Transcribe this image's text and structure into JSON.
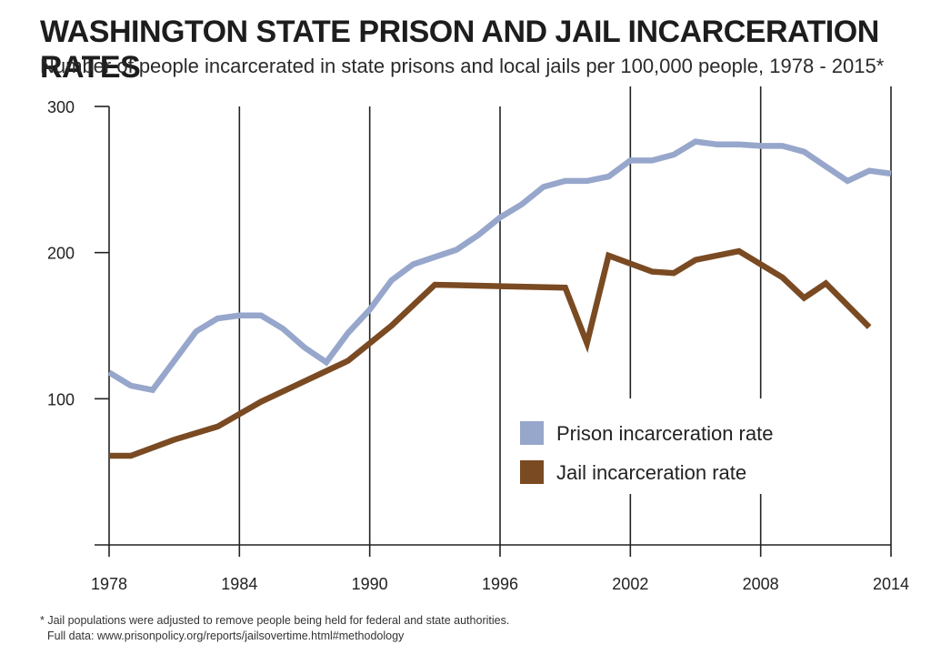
{
  "header": {
    "title": "WASHINGTON STATE PRISON AND JAIL INCARCERATION RATES",
    "subtitle": "Number of people incarcerated in state prisons and local jails per 100,000 people, 1978 - 2015*"
  },
  "footnote": {
    "line1": "* Jail populations were adjusted to remove people being held for federal and state authorities.",
    "line2": "Full data: www.prisonpolicy.org/reports/jailsovertime.html#methodology"
  },
  "chart_data": {
    "type": "line",
    "title": "WASHINGTON STATE PRISON AND JAIL INCARCERATION RATES",
    "subtitle": "Number of people incarcerated in state prisons and local jails per 100,000 people, 1978 - 2015*",
    "xlabel": "",
    "ylabel": "",
    "xlim": [
      1978,
      2014
    ],
    "ylim": [
      0,
      300
    ],
    "x_ticks": [
      1978,
      1984,
      1990,
      1996,
      2002,
      2008,
      2014
    ],
    "y_ticks": [
      100,
      200,
      300
    ],
    "legend_position": "lower-right",
    "grid": "vertical",
    "series": [
      {
        "name": "Prison incarceration rate",
        "color": "#97a6cb",
        "x": [
          1978,
          1979,
          1980,
          1981,
          1982,
          1983,
          1984,
          1985,
          1986,
          1987,
          1988,
          1989,
          1990,
          1991,
          1992,
          1993,
          1994,
          1995,
          1996,
          1997,
          1998,
          1999,
          2000,
          2001,
          2002,
          2003,
          2004,
          2005,
          2006,
          2007,
          2008,
          2009,
          2010,
          2011,
          2012,
          2013,
          2014
        ],
        "y": [
          118,
          109,
          106,
          126,
          146,
          155,
          157,
          157,
          148,
          135,
          125,
          145,
          161,
          181,
          192,
          197,
          202,
          212,
          224,
          233,
          245,
          249,
          249,
          252,
          263,
          263,
          267,
          276,
          274,
          274,
          273,
          273,
          269,
          259,
          249,
          256,
          254
        ]
      },
      {
        "name": "Jail incarceration rate",
        "color": "#7a4a22",
        "x": [
          1978,
          1979,
          1981,
          1983,
          1985,
          1987,
          1989,
          1991,
          1993,
          1996,
          1999,
          2000,
          2001,
          2003,
          2004,
          2005,
          2007,
          2009,
          2010,
          2011,
          2013
        ],
        "y": [
          61,
          61,
          72,
          81,
          98,
          112,
          126,
          150,
          178,
          177,
          176,
          138,
          198,
          187,
          186,
          195,
          201,
          183,
          169,
          179,
          149
        ]
      }
    ]
  }
}
